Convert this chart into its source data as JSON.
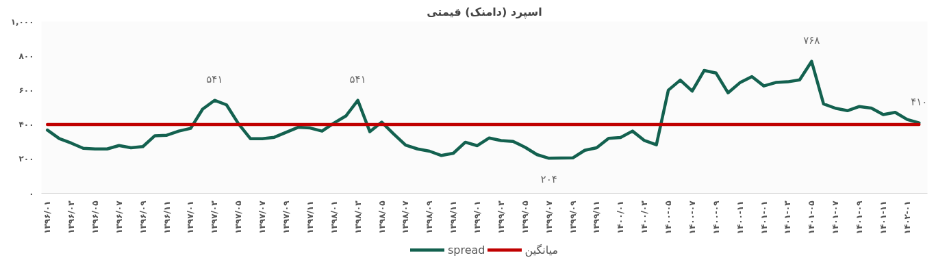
{
  "chart_data": {
    "type": "line",
    "title": "اسپرد (دامنک) قیمتی",
    "categories": [
      "۱۳۹۶/۰۱",
      null,
      "۱۳۹۶/۰۳",
      null,
      "۱۳۹۶/۰۵",
      null,
      "۱۳۹۶/۰۷",
      null,
      "۱۳۹۶/۰۹",
      null,
      "۱۳۹۶/۱۱",
      null,
      "۱۳۹۷/۰۱",
      null,
      "۱۳۹۷/۰۳",
      null,
      "۱۳۹۷/۰۵",
      null,
      "۱۳۹۷/۰۷",
      null,
      "۱۳۹۷/۰۹",
      null,
      "۱۳۹۷/۱۱",
      null,
      "۱۳۹۸/۰۱",
      null,
      "۱۳۹۸/۰۳",
      null,
      "۱۳۹۸/۰۵",
      null,
      "۱۳۹۸/۰۷",
      null,
      "۱۳۹۸/۰۹",
      null,
      "۱۳۹۸/۱۱",
      null,
      "۱۳۹۹/۰۱",
      null,
      "۱۳۹۹/۰۳",
      null,
      "۱۳۹۹/۰۵",
      null,
      "۱۳۹۹/۰۷",
      null,
      "۱۳۹۹/۰۹",
      null,
      "۱۳۹۹/۱۱",
      null,
      "۱۴۰۰/۰۱",
      null,
      "۱۴۰۰/۰۳",
      null,
      "۱۴۰۰-۰۵",
      null,
      "۱۴۰۰-۰۷",
      null,
      "۱۴۰۰-۰۹",
      null,
      "۱۴۰۰-۱۱",
      null,
      "۱۴۰۱-۰۱",
      null,
      "۱۴۰۱-۰۳",
      null,
      "۱۴۰۱-۰۵",
      null,
      "۱۴۰۱-۰۷",
      null,
      "۱۴۰۱-۰۹",
      null,
      "۱۴۰۱-۱۱",
      null,
      "۱۴۰۲-۰۱",
      null
    ],
    "series": [
      {
        "name": "spread",
        "color": "#13614f",
        "values": [
          368,
          318,
          292,
          262,
          258,
          258,
          278,
          265,
          272,
          335,
          338,
          362,
          378,
          490,
          541,
          515,
          405,
          318,
          318,
          326,
          355,
          384,
          380,
          362,
          409,
          450,
          541,
          359,
          414,
          345,
          280,
          258,
          245,
          220,
          233,
          297,
          277,
          322,
          307,
          302,
          268,
          225,
          204,
          205,
          206,
          250,
          265,
          320,
          325,
          362,
          307,
          282,
          600,
          659,
          595,
          715,
          700,
          585,
          644,
          679,
          625,
          645,
          649,
          660,
          768,
          520,
          495,
          481,
          505,
          496,
          458,
          471,
          430,
          410
        ],
        "value_labels": [
          null,
          null,
          null,
          null,
          null,
          null,
          null,
          null,
          null,
          null,
          null,
          null,
          null,
          null,
          "۵۴۱",
          null,
          null,
          null,
          null,
          null,
          null,
          null,
          null,
          null,
          null,
          null,
          "۵۴۱",
          null,
          null,
          null,
          null,
          null,
          null,
          null,
          null,
          null,
          null,
          null,
          null,
          null,
          null,
          null,
          "۲۰۴",
          null,
          null,
          null,
          null,
          null,
          null,
          null,
          null,
          null,
          null,
          null,
          null,
          null,
          null,
          null,
          null,
          null,
          null,
          null,
          null,
          null,
          "۷۶۸",
          null,
          null,
          null,
          null,
          null,
          null,
          null,
          null,
          "۴۱۰"
        ]
      },
      {
        "name": "میانگین",
        "color": "#c00000",
        "values": [
          400,
          400,
          400,
          400,
          400,
          400,
          400,
          400,
          400,
          400,
          400,
          400,
          400,
          400,
          400,
          400,
          400,
          400,
          400,
          400,
          400,
          400,
          400,
          400,
          400,
          400,
          400,
          400,
          400,
          400,
          400,
          400,
          400,
          400,
          400,
          400,
          400,
          400,
          400,
          400,
          400,
          400,
          400,
          400,
          400,
          400,
          400,
          400,
          400,
          400,
          400,
          400,
          400,
          400,
          400,
          400,
          400,
          400,
          400,
          400,
          400,
          400,
          400,
          400,
          400,
          400,
          400,
          400,
          400,
          400,
          400,
          400,
          400,
          400
        ]
      }
    ],
    "ylim": [
      0,
      1000
    ],
    "yticks": [
      {
        "value": 0,
        "label": "۰"
      },
      {
        "value": 200,
        "label": "۲۰۰"
      },
      {
        "value": 400,
        "label": "۴۰۰"
      },
      {
        "value": 600,
        "label": "۶۰۰"
      },
      {
        "value": 800,
        "label": "۸۰۰"
      },
      {
        "value": 1000,
        "label": "۱,۰۰۰"
      }
    ],
    "grid": false,
    "legend": "bottom",
    "marker": "none",
    "line_style": "solid"
  }
}
